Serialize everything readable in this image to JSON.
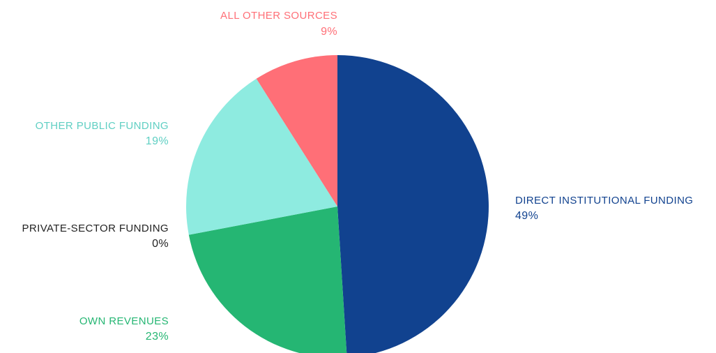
{
  "chart_data": {
    "type": "pie",
    "title": "",
    "slices": [
      {
        "label": "DIRECT INSTITUTIONAL FUNDING",
        "value": 49,
        "display": "49%",
        "color": "#11428f"
      },
      {
        "label": "OWN REVENUES",
        "value": 23,
        "display": "23%",
        "color": "#25b673"
      },
      {
        "label": "PRIVATE-SECTOR FUNDING",
        "value": 0,
        "display": "0%",
        "color": "#222222"
      },
      {
        "label": "OTHER PUBLIC FUNDING",
        "value": 19,
        "display": "19%",
        "color": "#8eebe0"
      },
      {
        "label": "ALL OTHER SOURCES",
        "value": 9,
        "display": "9%",
        "color": "#ff6f77"
      }
    ],
    "start_angle": "12 o'clock",
    "direction": "clockwise"
  }
}
